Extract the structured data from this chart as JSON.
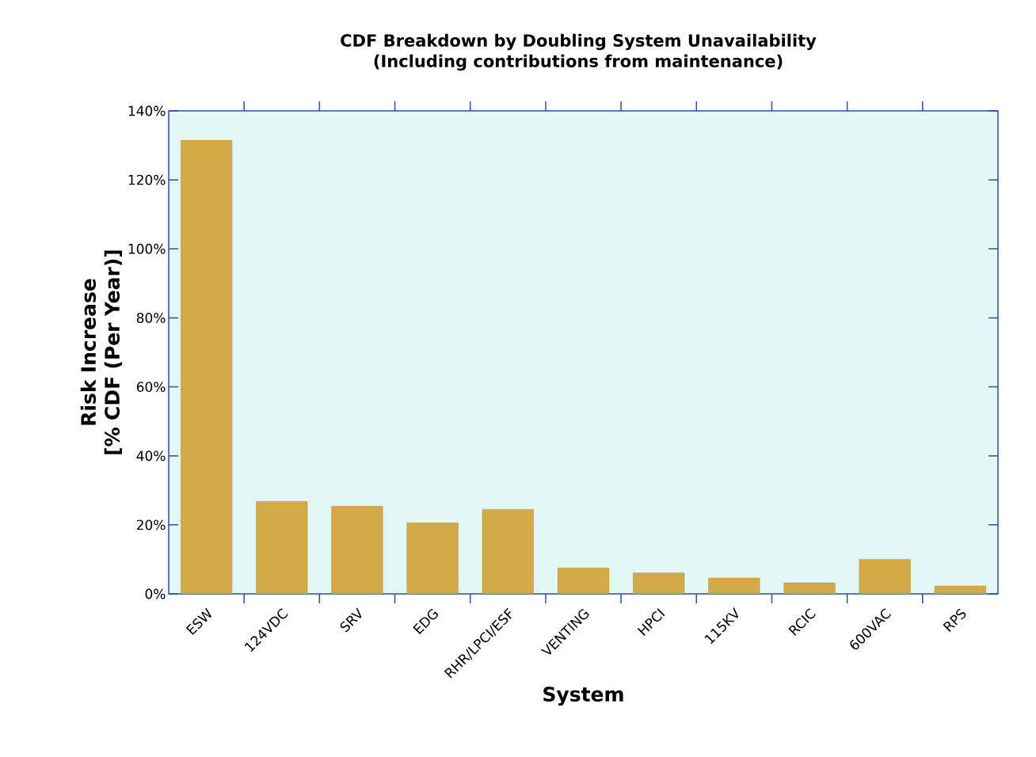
{
  "chart_data": {
    "type": "bar",
    "title": "CDF Breakdown by Doubling System Unavailability",
    "subtitle": "(Including contributions from maintenance)",
    "xlabel": "System",
    "ylabel": "Risk Increase\n[% CDF (Per Year)]",
    "categories": [
      "ESW",
      "124VDC",
      "SRV",
      "EDG",
      "RHR/LPCI/ESF",
      "VENTING",
      "HPCI",
      "115KV",
      "RCIC",
      "600VAC",
      "RPS"
    ],
    "values": [
      131.5,
      26.8,
      25.4,
      20.6,
      24.5,
      7.5,
      6.1,
      4.6,
      3.2,
      10.0,
      2.3
    ],
    "color": "#d4aa48",
    "ylim": [
      0,
      140
    ],
    "yticks": [
      {
        "value": 0,
        "label": "0%"
      },
      {
        "value": 20,
        "label": "20%"
      },
      {
        "value": 40,
        "label": "40%"
      },
      {
        "value": 60,
        "label": "60%"
      },
      {
        "value": 80,
        "label": "80%"
      },
      {
        "value": 100,
        "label": "100%"
      },
      {
        "value": 120,
        "label": "120%"
      },
      {
        "value": 140,
        "label": "140%"
      }
    ]
  }
}
